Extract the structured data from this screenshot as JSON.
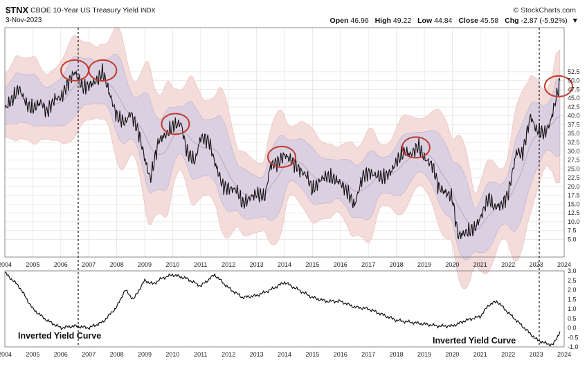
{
  "header": {
    "symbol": "$TNX",
    "subtitle": "CBOE 10-Year US Treasury Yield",
    "exchange": "INDX",
    "date": "3-Nov-2023",
    "brand": "© StockCharts.com",
    "ohlc": {
      "open_label": "Open",
      "open": "46.96",
      "high_label": "High",
      "high": "49.22",
      "low_label": "Low",
      "low": "44.84",
      "close_label": "Close",
      "close": "45.58",
      "chg_label": "Chg",
      "chg": "-2.87 (-5.92%)",
      "chg_arrow": "▼"
    }
  },
  "annotations": {
    "left": "Inverted Yield Curve",
    "right": "Inverted Yield Curve"
  },
  "colors": {
    "price": "#111111",
    "inner_band": "#d9cfe2",
    "outer_band": "#f3dcda",
    "moving_avg": "#b5a8c0",
    "circle": "#c0392b",
    "grid": "#e6e6e6"
  },
  "chart_data": [
    {
      "type": "line",
      "title": "$TNX CBOE 10-Year US Treasury Yield",
      "ylim": [
        0,
        65
      ],
      "yticks": [
        "5.0",
        "7.5",
        "10.0",
        "12.5",
        "15.0",
        "17.5",
        "20.0",
        "22.5",
        "25.0",
        "27.5",
        "30.0",
        "32.5",
        "35.0",
        "37.5",
        "40.0",
        "42.5",
        "45.0",
        "47.5",
        "50.0",
        "52.5"
      ],
      "xticks": [
        "2004",
        "2005",
        "2006",
        "2007",
        "2008",
        "2009",
        "2010",
        "2011",
        "2012",
        "2013",
        "2014",
        "2015",
        "2016",
        "2017",
        "2018",
        "2019",
        "2020",
        "2021",
        "2022",
        "2023",
        "2024"
      ],
      "grid": true,
      "series": [
        {
          "x": [
            2004.0,
            2004.3,
            2004.5,
            2004.8,
            2005.0,
            2005.3,
            2005.5,
            2005.8,
            2006.0,
            2006.3,
            2006.5,
            2006.8,
            2007.0,
            2007.3,
            2007.5,
            2007.8,
            2008.0,
            2008.3,
            2008.5,
            2008.8,
            2009.0,
            2009.2,
            2009.5,
            2009.8,
            2010.0,
            2010.3,
            2010.5,
            2010.8,
            2011.0,
            2011.3,
            2011.5,
            2011.8,
            2012.0,
            2012.3,
            2012.5,
            2012.8,
            2013.0,
            2013.3,
            2013.5,
            2013.8,
            2014.0,
            2014.3,
            2014.5,
            2014.8,
            2015.0,
            2015.3,
            2015.5,
            2015.8,
            2016.0,
            2016.3,
            2016.5,
            2016.8,
            2017.0,
            2017.3,
            2017.5,
            2017.8,
            2018.0,
            2018.3,
            2018.5,
            2018.8,
            2019.0,
            2019.3,
            2019.5,
            2019.8,
            2020.0,
            2020.2,
            2020.5,
            2020.8,
            2021.0,
            2021.3,
            2021.5,
            2021.8,
            2022.0,
            2022.3,
            2022.5,
            2022.8,
            2023.0,
            2023.3,
            2023.5,
            2023.8,
            2023.85
          ],
          "values": [
            42.0,
            45.0,
            48.0,
            43.0,
            42.0,
            44.0,
            41.0,
            45.0,
            45.0,
            50.0,
            52.5,
            48.0,
            48.5,
            50.0,
            52.5,
            45.0,
            40.0,
            38.0,
            41.0,
            35.0,
            28.0,
            22.0,
            33.0,
            35.0,
            37.0,
            38.0,
            30.0,
            27.0,
            34.0,
            33.0,
            27.0,
            20.0,
            19.5,
            19.0,
            15.0,
            17.0,
            18.0,
            17.0,
            26.0,
            27.0,
            29.0,
            27.0,
            25.0,
            23.0,
            19.0,
            22.0,
            23.0,
            22.0,
            21.0,
            18.0,
            14.5,
            23.0,
            24.0,
            23.0,
            22.5,
            24.0,
            27.0,
            30.0,
            29.0,
            31.5,
            28.0,
            26.0,
            20.0,
            18.0,
            17.0,
            6.0,
            7.0,
            8.0,
            11.0,
            17.0,
            14.0,
            15.0,
            18.0,
            30.0,
            29.0,
            40.0,
            36.0,
            35.0,
            38.0,
            48.0,
            49.5
          ]
        }
      ],
      "peaks_circled": [
        2006.5,
        2007.5,
        2010.1,
        2013.9,
        2018.7,
        2023.8
      ]
    },
    {
      "type": "line",
      "ylim": [
        -1.0,
        3.0
      ],
      "yticks": [
        "3.0",
        "2.5",
        "2.0",
        "1.5",
        "1.0",
        "0.5",
        "0.0",
        "-0.5",
        "-1.0"
      ],
      "xticks": [
        "2004",
        "2005",
        "2006",
        "2007",
        "2008",
        "2009",
        "2010",
        "2011",
        "2012",
        "2013",
        "2014",
        "2015",
        "2016",
        "2017",
        "2018",
        "2019",
        "2020",
        "2021",
        "2022",
        "2023",
        "2024"
      ],
      "grid": false,
      "series": [
        {
          "x": [
            2004.0,
            2004.5,
            2005.0,
            2005.5,
            2006.0,
            2006.5,
            2007.0,
            2007.5,
            2008.0,
            2008.3,
            2008.6,
            2009.0,
            2009.3,
            2009.6,
            2010.0,
            2010.5,
            2011.0,
            2011.5,
            2012.0,
            2012.5,
            2013.0,
            2013.5,
            2014.0,
            2014.5,
            2015.0,
            2015.5,
            2016.0,
            2016.5,
            2017.0,
            2017.5,
            2018.0,
            2018.5,
            2019.0,
            2019.5,
            2020.0,
            2020.5,
            2021.0,
            2021.3,
            2021.6,
            2022.0,
            2022.5,
            2023.0,
            2023.3,
            2023.6,
            2023.85
          ],
          "values": [
            2.9,
            2.2,
            1.0,
            0.4,
            0.0,
            0.1,
            0.0,
            0.3,
            1.1,
            2.0,
            1.5,
            2.5,
            2.3,
            2.6,
            2.8,
            2.6,
            2.2,
            2.8,
            2.1,
            1.6,
            1.7,
            2.0,
            2.4,
            2.0,
            1.6,
            1.4,
            1.4,
            1.1,
            1.0,
            0.7,
            0.4,
            0.3,
            0.2,
            0.1,
            0.1,
            0.4,
            0.6,
            1.2,
            1.4,
            0.8,
            0.1,
            -0.6,
            -0.8,
            -0.9,
            -0.2
          ]
        }
      ]
    }
  ]
}
